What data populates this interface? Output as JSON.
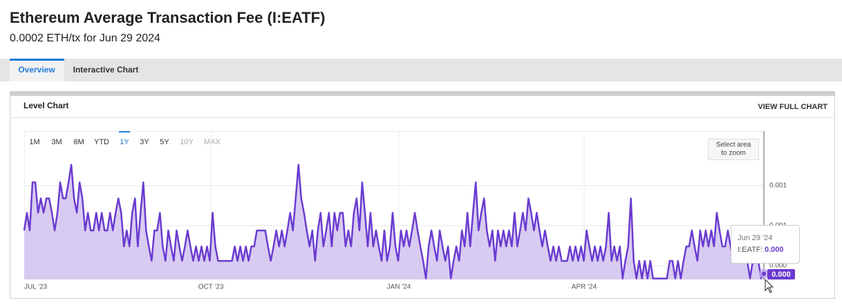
{
  "header": {
    "title": "Ethereum Average Transaction Fee (I:EATF)",
    "subtitle": "0.0002 ETH/tx for Jun 29 2024"
  },
  "tabs": [
    "Overview",
    "Interactive Chart"
  ],
  "active_tab": 0,
  "panel": {
    "title": "Level Chart",
    "link": "VIEW FULL CHART"
  },
  "ranges": [
    "1M",
    "3M",
    "6M",
    "YTD",
    "1Y",
    "3Y",
    "5Y",
    "10Y",
    "MAX"
  ],
  "active_range": 4,
  "disabled_ranges": [
    7,
    8
  ],
  "zoom_hint": [
    "Select area",
    "to zoom"
  ],
  "chart_data": {
    "type": "area",
    "color": "#6a3bd0",
    "fill": "#d8cbf1",
    "grid": true,
    "x_labels": [
      "JUL '23",
      "OCT '23",
      "JAN '24",
      "APR '24"
    ],
    "ylim": [
      0.000164,
      0.00109
    ],
    "yticks": [
      {
        "value": 0.00025,
        "label": "0.000"
      },
      {
        "value": 0.0005,
        "label": "0.001"
      },
      {
        "value": 0.00075,
        "label": "0.001"
      }
    ],
    "values": [
      0.00047,
      0.00058,
      0.00047,
      0.00077,
      0.00077,
      0.00058,
      0.00067,
      0.00058,
      0.00067,
      0.00067,
      0.00058,
      0.00047,
      0.00058,
      0.00077,
      0.00067,
      0.00067,
      0.00077,
      0.00088,
      0.00067,
      0.00058,
      0.00077,
      0.00067,
      0.00047,
      0.00058,
      0.00047,
      0.00047,
      0.00058,
      0.00047,
      0.00058,
      0.00047,
      0.00047,
      0.00058,
      0.00047,
      0.00058,
      0.00067,
      0.00058,
      0.00037,
      0.00047,
      0.00037,
      0.00058,
      0.00067,
      0.00037,
      0.00058,
      0.00077,
      0.00047,
      0.00037,
      0.00028,
      0.00047,
      0.00047,
      0.00058,
      0.00037,
      0.00028,
      0.00047,
      0.00037,
      0.00028,
      0.00047,
      0.00037,
      0.00028,
      0.00037,
      0.00047,
      0.00037,
      0.00028,
      0.00037,
      0.00028,
      0.00037,
      0.00028,
      0.00037,
      0.00028,
      0.00058,
      0.00037,
      0.00028,
      0.00028,
      0.00028,
      0.00028,
      0.00028,
      0.00028,
      0.00037,
      0.00028,
      0.00037,
      0.00028,
      0.00037,
      0.00028,
      0.00037,
      0.00037,
      0.00047,
      0.00047,
      0.00047,
      0.00047,
      0.00037,
      0.00028,
      0.00037,
      0.00047,
      0.00037,
      0.00047,
      0.00037,
      0.00047,
      0.00058,
      0.00047,
      0.00067,
      0.00088,
      0.00067,
      0.00058,
      0.00047,
      0.00037,
      0.00047,
      0.00028,
      0.00047,
      0.00058,
      0.00037,
      0.00047,
      0.00058,
      0.00037,
      0.00058,
      0.00047,
      0.00058,
      0.00058,
      0.00037,
      0.00047,
      0.00037,
      0.00058,
      0.00067,
      0.00047,
      0.00077,
      0.00058,
      0.00037,
      0.00058,
      0.00037,
      0.00047,
      0.00037,
      0.00028,
      0.00047,
      0.00028,
      0.00037,
      0.00058,
      0.00037,
      0.00028,
      0.00047,
      0.00037,
      0.00047,
      0.00037,
      0.00047,
      0.00058,
      0.00047,
      0.00037,
      0.00028,
      0.00017,
      0.00037,
      0.00047,
      0.00037,
      0.00028,
      0.00047,
      0.00037,
      0.00028,
      0.00037,
      0.00017,
      0.00028,
      0.00037,
      0.00028,
      0.00047,
      0.00037,
      0.00058,
      0.00037,
      0.00058,
      0.00077,
      0.00047,
      0.00058,
      0.00067,
      0.00047,
      0.00037,
      0.00047,
      0.00028,
      0.00047,
      0.00037,
      0.00047,
      0.00037,
      0.00047,
      0.00037,
      0.00058,
      0.00037,
      0.00047,
      0.00058,
      0.00047,
      0.00067,
      0.00058,
      0.00047,
      0.00058,
      0.00047,
      0.00037,
      0.00047,
      0.00037,
      0.00028,
      0.00037,
      0.00028,
      0.00037,
      0.00028,
      0.00028,
      0.00028,
      0.00037,
      0.00028,
      0.00037,
      0.00028,
      0.00037,
      0.00028,
      0.00047,
      0.00037,
      0.00028,
      0.00037,
      0.00028,
      0.00037,
      0.00028,
      0.00037,
      0.00058,
      0.00028,
      0.00037,
      0.00028,
      0.00037,
      0.00017,
      0.00028,
      0.00037,
      0.00067,
      0.00028,
      0.00017,
      0.00028,
      0.00017,
      0.00028,
      0.00017,
      0.00028,
      0.00017,
      0.00017,
      0.00017,
      0.00017,
      0.00017,
      0.00017,
      0.00028,
      0.00028,
      0.00017,
      0.00028,
      0.00017,
      0.00028,
      0.00037,
      0.00037,
      0.00047,
      0.00037,
      0.00028,
      0.00047,
      0.00037,
      0.00047,
      0.00037,
      0.00047,
      0.00037,
      0.00058,
      0.00047,
      0.00037,
      0.00037,
      0.00047,
      0.00037,
      0.00028,
      0.00028,
      0.00028,
      0.00028,
      0.00028,
      0.00028,
      0.00017,
      0.00028,
      0.00028,
      0.00028,
      0.00017,
      0.0002
    ],
    "last_value_label": "0.000",
    "tooltip": {
      "date": "Jun 29 '24",
      "series_label": "I:EATF:"
    }
  }
}
